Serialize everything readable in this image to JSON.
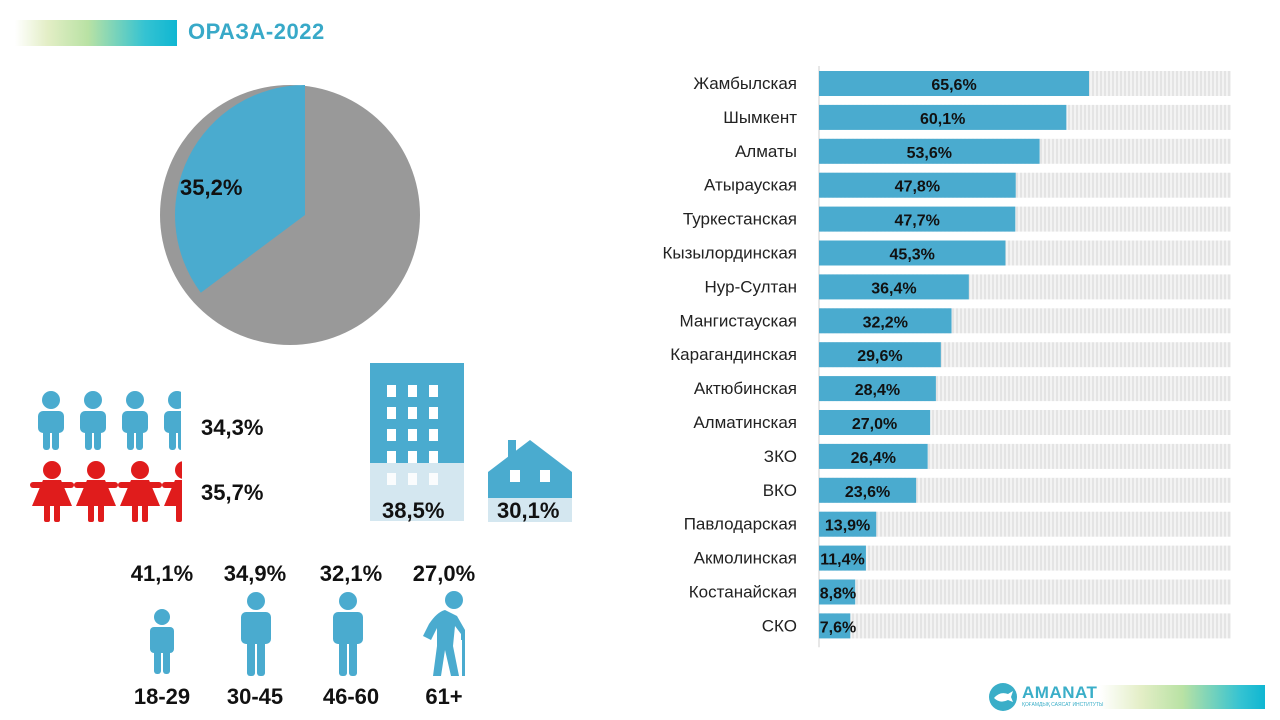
{
  "header": {
    "title": "ОРАЗА-2022"
  },
  "overall": {
    "value": 35.2,
    "label": "35,2%"
  },
  "gender": {
    "male": "34,3%",
    "female": "35,7%"
  },
  "settlement": {
    "urban": "38,5%",
    "rural": "30,1%"
  },
  "age_groups": [
    {
      "value": "41,1%",
      "label": "18-29"
    },
    {
      "value": "34,9%",
      "label": "30-45"
    },
    {
      "value": "32,1%",
      "label": "46-60"
    },
    {
      "value": "27,0%",
      "label": "61+"
    }
  ],
  "colors": {
    "accent": "#4aabcf",
    "gray": "#999999",
    "female": "#e01c1c",
    "track": "#e6e6e6"
  },
  "chart_data": {
    "type": "bar",
    "orientation": "horizontal",
    "title": "",
    "xlim": [
      0,
      100
    ],
    "categories": [
      "Жамбылская",
      "Шымкент",
      "Алматы",
      "Атырауская",
      "Туркестанская",
      "Кызылординская",
      "Нур-Султан",
      "Мангистауская",
      "Карагандинская",
      "Актюбинская",
      "Алматинская",
      "ЗКО",
      "ВКО",
      "Павлодарская",
      "Акмолинская",
      "Костанайская",
      "СКО"
    ],
    "values": [
      65.6,
      60.1,
      53.6,
      47.8,
      47.7,
      45.3,
      36.4,
      32.2,
      29.6,
      28.4,
      27.0,
      26.4,
      23.6,
      13.9,
      11.4,
      8.8,
      7.6
    ],
    "labels": [
      "65,6%",
      "60,1%",
      "53,6%",
      "47,8%",
      "47,7%",
      "45,3%",
      "36,4%",
      "32,2%",
      "29,6%",
      "28,4%",
      "27,0%",
      "26,4%",
      "23,6%",
      "13,9%",
      "11,4%",
      "8,8%",
      "7,6%"
    ]
  },
  "logo": {
    "name": "AMANAT",
    "subtitle": "ҚОҒАМДЫҚ САЯСАТ ИНСТИТУТЫ"
  }
}
